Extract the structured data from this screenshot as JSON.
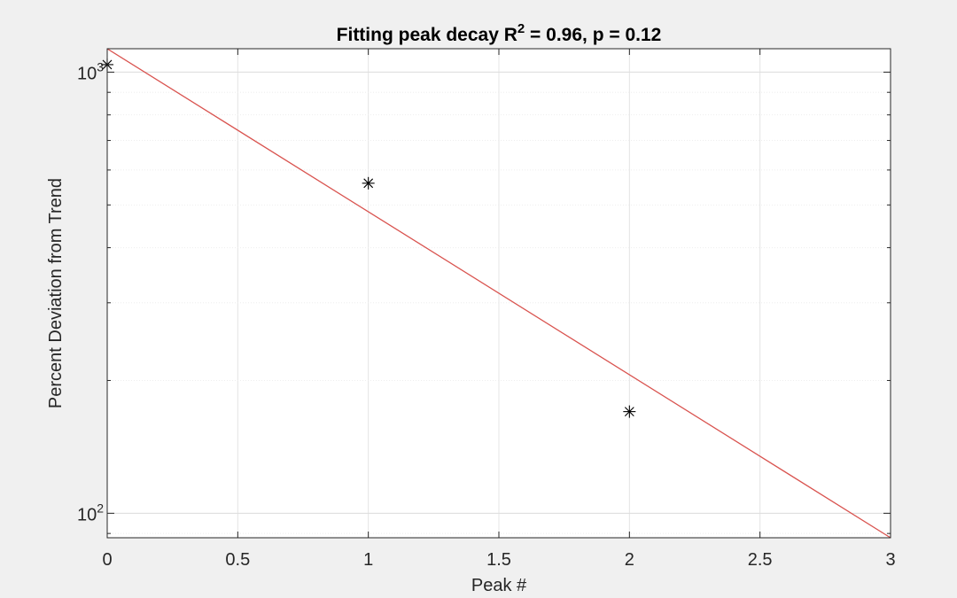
{
  "chart_data": {
    "type": "scatter",
    "title": "Fitting peak decay R",
    "title_superscript": "2",
    "title_suffix": " = 0.96, p = 0.12",
    "xlabel": "Peak #",
    "ylabel": "Percent Deviation from Trend",
    "xlim": [
      0,
      3
    ],
    "ylim": [
      88,
      1130
    ],
    "y_scale": "log",
    "grid": true,
    "x_ticks": [
      {
        "value": 0,
        "label": "0"
      },
      {
        "value": 0.5,
        "label": "0.5"
      },
      {
        "value": 1,
        "label": "1"
      },
      {
        "value": 1.5,
        "label": "1.5"
      },
      {
        "value": 2,
        "label": "2"
      },
      {
        "value": 2.5,
        "label": "2.5"
      },
      {
        "value": 3,
        "label": "3"
      }
    ],
    "y_ticks": [
      {
        "value": 100,
        "base": "10",
        "exp": "2"
      },
      {
        "value": 1000,
        "base": "10",
        "exp": "3"
      }
    ],
    "series": [
      {
        "marker": "asterisk",
        "color": "#000000",
        "x": [
          0,
          1,
          2
        ],
        "y": [
          1040,
          560,
          170
        ]
      }
    ],
    "fit_line": {
      "color": "#d9534f",
      "x": [
        0,
        3
      ],
      "y": [
        1130,
        88
      ]
    }
  }
}
